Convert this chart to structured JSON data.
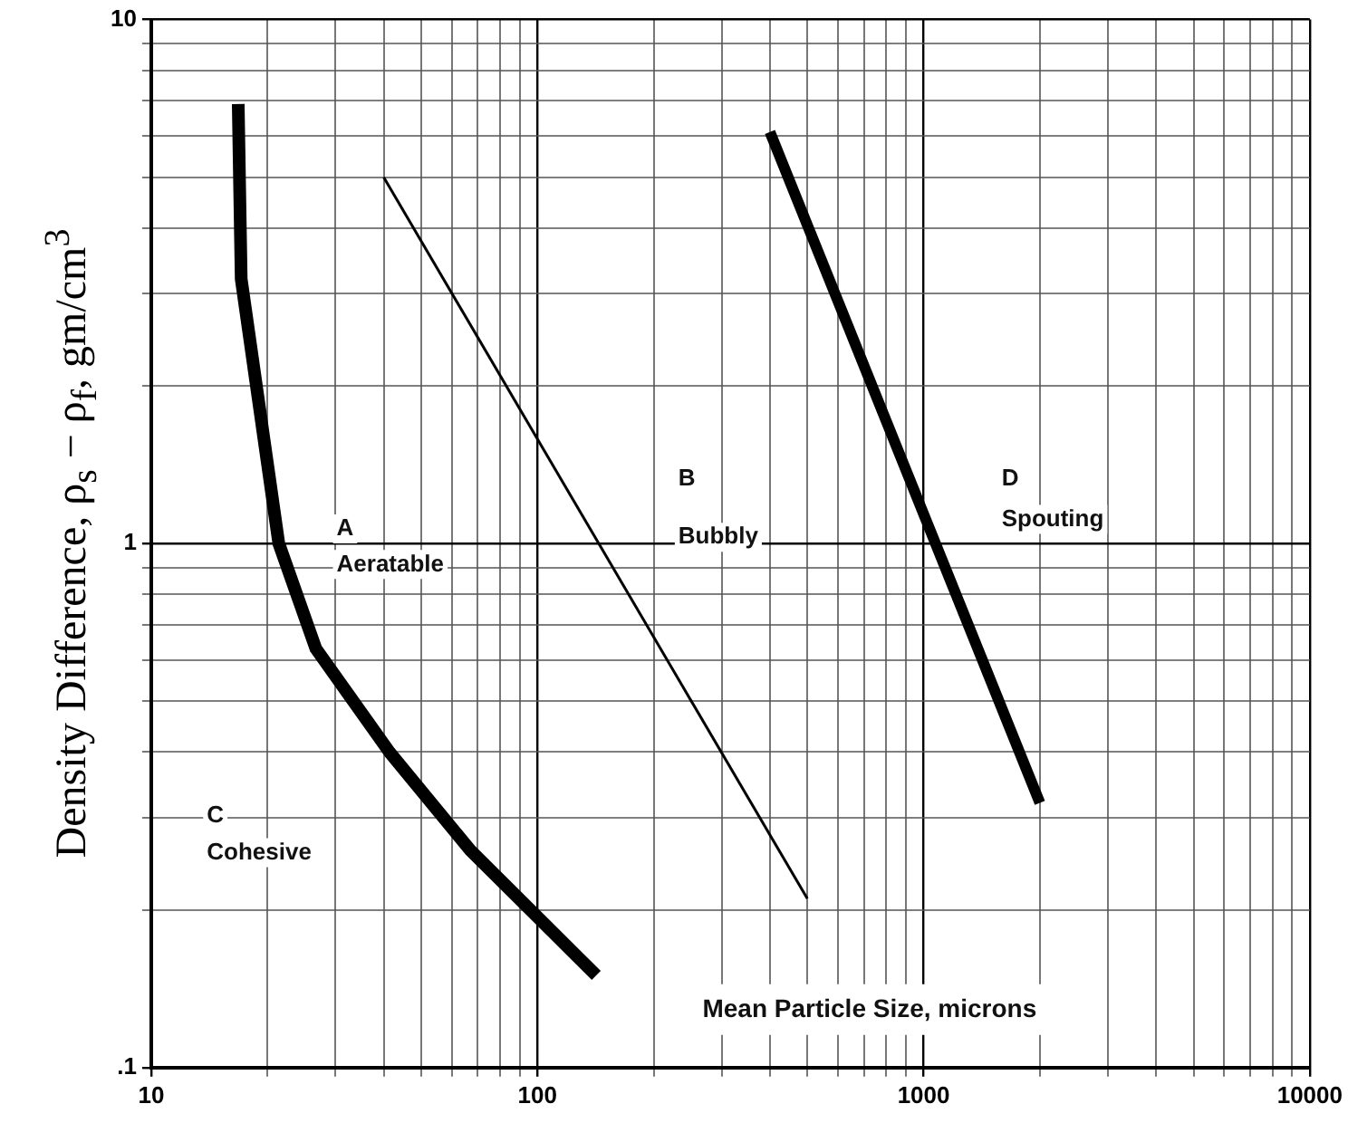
{
  "chart_data": {
    "type": "line",
    "xlabel": "Mean Particle Size, microns",
    "ylabel": "Density Difference, ρ$_{s}$ − ρ$_{f}$, gm/cm$^{3}$",
    "log": "xy",
    "grid": true,
    "legend": false,
    "marker": "none",
    "line_style": "solid",
    "xlim": [
      10,
      10000
    ],
    "ylim": [
      0.1,
      10
    ],
    "xticks": [
      10,
      {
        "value": 20,
        "label": null
      },
      {
        "value": 30,
        "label": null
      },
      {
        "value": 40,
        "label": null
      },
      {
        "value": 50,
        "label": null
      },
      {
        "value": 60,
        "label": null
      },
      {
        "value": 70,
        "label": null
      },
      {
        "value": 80,
        "label": null
      },
      {
        "value": 90,
        "label": null
      },
      100,
      {
        "value": 200,
        "label": null
      },
      {
        "value": 300,
        "label": null
      },
      {
        "value": 400,
        "label": null
      },
      {
        "value": 500,
        "label": null
      },
      {
        "value": 600,
        "label": null
      },
      {
        "value": 700,
        "label": null
      },
      {
        "value": 800,
        "label": null
      },
      {
        "value": 900,
        "label": null
      },
      1000,
      {
        "value": 2000,
        "label": null
      },
      {
        "value": 3000,
        "label": null
      },
      {
        "value": 4000,
        "label": null
      },
      {
        "value": 5000,
        "label": null
      },
      {
        "value": 6000,
        "label": null
      },
      {
        "value": 7000,
        "label": null
      },
      {
        "value": 8000,
        "label": null
      },
      {
        "value": 9000,
        "label": null
      },
      10000
    ],
    "yticks": [
      {
        "value": 0.1,
        "label": ".1"
      },
      {
        "value": 0.2,
        "label": null
      },
      {
        "value": 0.3,
        "label": null
      },
      {
        "value": 0.4,
        "label": null
      },
      {
        "value": 0.5,
        "label": null
      },
      {
        "value": 0.6,
        "label": null
      },
      {
        "value": 0.7,
        "label": null
      },
      {
        "value": 0.8,
        "label": null
      },
      {
        "value": 0.9,
        "label": null
      },
      1,
      {
        "value": 2,
        "label": null
      },
      {
        "value": 3,
        "label": null
      },
      {
        "value": 4,
        "label": null
      },
      {
        "value": 5,
        "label": null
      },
      {
        "value": 6,
        "label": null
      },
      {
        "value": 7,
        "label": null
      },
      {
        "value": 8,
        "label": null
      },
      {
        "value": 9,
        "label": null
      },
      10
    ],
    "series": [
      {
        "color": "#000000",
        "x": [
          16.8,
          17.1,
          21.4,
          26.7,
          41.4,
          67,
          142
        ],
        "values": [
          6.9,
          3.2,
          1.0,
          0.63,
          0.4,
          0.26,
          0.15
        ]
      },
      {
        "color": "#000000",
        "x": [
          40,
          500
        ],
        "values": [
          5.0,
          0.21
        ]
      },
      {
        "color": "#000000",
        "x": [
          400,
          2000
        ],
        "values": [
          6.1,
          0.32
        ]
      }
    ],
    "annotations": [
      "A",
      "Aeratable",
      "B",
      "Bubbly",
      "C",
      "Cohesive",
      "D",
      "Spouting"
    ]
  }
}
